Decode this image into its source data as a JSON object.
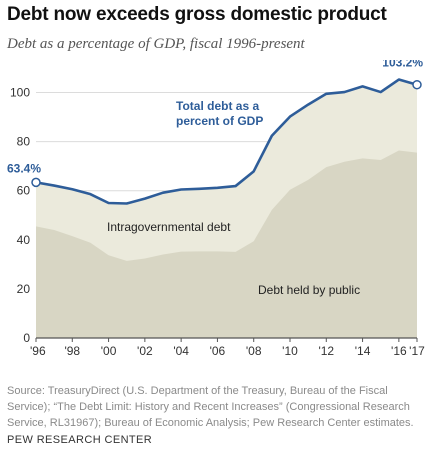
{
  "title": "Debt now exceeds gross domestic product",
  "subtitle": "Debt as a percentage of GDP, fiscal 1996-present",
  "source": "Source: TreasuryDirect (U.S. Department of the Treasury, Bureau of the Fiscal Service); “The Debt Limit: History and Recent Increases” (Congressional Research Service, RL31967); Bureau of Economic Analysis; Pew Research Center estimates.",
  "credit": "PEW RESEARCH CENTER",
  "colors": {
    "total_line": "#2e5d99",
    "intragovernmental_fill": "#ebeadc",
    "public_fill": "#d8d6c4",
    "grid": "#dcdcdc",
    "axis": "#555555",
    "axis_text": "#333333",
    "area_label_text": "#222222"
  },
  "chart_data": {
    "type": "area",
    "x": [
      1996,
      1997,
      1998,
      1999,
      2000,
      2001,
      2002,
      2003,
      2004,
      2005,
      2006,
      2007,
      2008,
      2009,
      2010,
      2011,
      2012,
      2013,
      2014,
      2015,
      2016,
      2017
    ],
    "x_tick_labels": [
      "'96",
      "'98",
      "'00",
      "'02",
      "'04",
      "'06",
      "'08",
      "'10",
      "'12",
      "'14",
      "'16",
      "'17"
    ],
    "x_tick_values": [
      1996,
      1998,
      2000,
      2002,
      2004,
      2006,
      2008,
      2010,
      2012,
      2014,
      2016,
      2017
    ],
    "y_ticks": [
      0,
      20,
      40,
      60,
      80,
      100
    ],
    "ylim": [
      0,
      110
    ],
    "grid": true,
    "series": [
      {
        "key": "total",
        "values": [
          63.4,
          62.1,
          60.6,
          58.6,
          55.0,
          54.8,
          56.8,
          59.2,
          60.5,
          60.8,
          61.2,
          61.9,
          67.9,
          82.4,
          90.2,
          95.1,
          99.5,
          100.2,
          102.5,
          100.2,
          105.3,
          103.2
        ]
      },
      {
        "key": "public",
        "values": [
          45.5,
          44.0,
          41.5,
          38.8,
          33.7,
          31.4,
          32.4,
          34.0,
          35.2,
          35.3,
          35.3,
          35.1,
          39.4,
          52.2,
          60.4,
          64.4,
          69.6,
          71.8,
          73.2,
          72.5,
          76.4,
          75.5
        ]
      }
    ],
    "annotations": {
      "start_label": "63.4%",
      "end_label": "103.2%",
      "total_label": [
        "Total debt as a",
        "percent of GDP"
      ],
      "intragovernmental_label": "Intragovernmental debt",
      "public_label": "Debt held by public"
    }
  }
}
